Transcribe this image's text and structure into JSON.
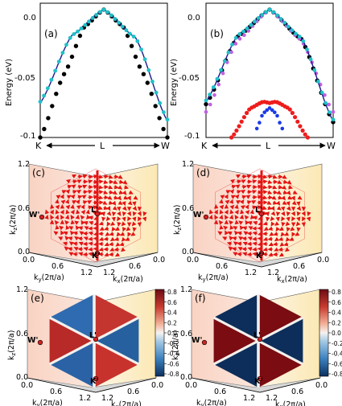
{
  "panels": {
    "a": {
      "label": "(a)",
      "ylabel": "Energy (eV)",
      "yticks": [
        "0.0",
        "-0.05",
        "-0.1"
      ],
      "xticks": [
        "K",
        "L",
        "W"
      ]
    },
    "b": {
      "label": "(b)",
      "ylabel": "Energy (eV)",
      "yticks": [
        "0.0",
        "-0.05",
        "-0.1"
      ],
      "xticks": [
        "K",
        "L",
        "W"
      ]
    },
    "c": {
      "label": "(c)"
    },
    "d": {
      "label": "(d)"
    },
    "e": {
      "label": "(e)"
    },
    "f": {
      "label": "(f)"
    }
  },
  "bz3d": {
    "zlabel": "k₂(2π/a)",
    "zlabel_main": "k",
    "zlabel_sub": "z",
    "zlabel_tail": "(2π/a)",
    "ylabel_main": "k",
    "ylabel_sub": "y",
    "ylabel_tail": "(2π/a)",
    "xlabel_main": "k",
    "xlabel_sub": "x",
    "xlabel_tail": "(2π/a)",
    "zticks": [
      "1.2",
      "0.6",
      "0.0"
    ],
    "yticks": [
      "0.0",
      "0.6",
      "1.2"
    ],
    "xticks": [
      "1.2",
      "0.6",
      "0.0"
    ],
    "points": [
      "W'",
      "L'",
      "K'"
    ]
  },
  "colorbar": {
    "ticks": [
      "0.8",
      "0.6",
      "0.4",
      "0.2",
      "0.0",
      "-0.2",
      "-0.4",
      "-0.6",
      "-0.8"
    ]
  },
  "colors": {
    "cyan": "#20c0c8",
    "black": "#000000",
    "navy": "#1a1a8c",
    "red": "#ee1c1c",
    "blue": "#1a3ae6",
    "violet": "#c060e0",
    "dark_red": "#7a0c12",
    "dark_blue": "#0d2e5a"
  },
  "chart_data": [
    {
      "type": "line",
      "panel": "a",
      "x_labels": [
        "K",
        "L",
        "W"
      ],
      "ylim": [
        -0.1,
        0.005
      ],
      "series": [
        {
          "style": "navy line",
          "x": [
            -1,
            -0.5,
            0,
            0.5,
            1
          ],
          "y": [
            -0.073,
            -0.02,
            0.0,
            -0.022,
            -0.087
          ]
        },
        {
          "style": "cyan markers",
          "x": [
            -1,
            -0.5,
            0,
            0.5,
            1
          ],
          "y": [
            -0.072,
            -0.02,
            0.0,
            -0.022,
            -0.086
          ]
        },
        {
          "style": "black markers",
          "x": [
            -1,
            -0.62,
            -0.3,
            0,
            0.3,
            0.62,
            1
          ],
          "y": [
            -0.1,
            -0.05,
            -0.013,
            0.0,
            -0.013,
            -0.05,
            -0.1
          ]
        }
      ]
    },
    {
      "type": "line",
      "panel": "b",
      "x_labels": [
        "K",
        "L",
        "W"
      ],
      "ylim": [
        -0.1,
        0.005
      ],
      "series": [
        {
          "style": "navy line",
          "x": [
            -1,
            -0.5,
            0,
            0.5,
            1
          ],
          "y": [
            -0.072,
            -0.02,
            0.0,
            -0.022,
            -0.087
          ]
        },
        {
          "style": "cyan markers",
          "x": [
            -1,
            -0.5,
            0,
            0.5,
            1
          ],
          "y": [
            -0.071,
            -0.02,
            0.0,
            -0.022,
            -0.086
          ]
        },
        {
          "style": "black markers",
          "x": [
            -1,
            -0.5,
            0,
            0.5,
            1
          ],
          "y": [
            -0.074,
            -0.021,
            0.0,
            -0.023,
            -0.088
          ]
        },
        {
          "style": "violet markers",
          "x": [
            -1,
            -0.5,
            0,
            0.5,
            1
          ],
          "y": [
            -0.08,
            -0.024,
            0.0,
            -0.024,
            -0.08
          ]
        },
        {
          "style": "red markers",
          "x": [
            -0.6,
            -0.3,
            -0.1,
            0,
            0.1,
            0.3,
            0.6
          ],
          "y": [
            -0.1,
            -0.077,
            -0.072,
            -0.073,
            -0.072,
            -0.077,
            -0.1
          ]
        },
        {
          "style": "blue markers",
          "x": [
            -0.2,
            -0.1,
            0,
            0.1,
            0.2
          ],
          "y": [
            -0.093,
            -0.081,
            -0.077,
            -0.081,
            -0.093
          ]
        }
      ]
    },
    {
      "type": "quiver",
      "panel": "c",
      "note": "red spin-texture arrows on Brillouin-zone surface"
    },
    {
      "type": "quiver",
      "panel": "d",
      "note": "red spin-texture arrows on Brillouin-zone surface"
    },
    {
      "type": "heatmap",
      "panel": "e",
      "zlim": [
        -0.8,
        0.8
      ]
    },
    {
      "type": "heatmap",
      "panel": "f",
      "zlim": [
        -0.8,
        0.8
      ]
    }
  ]
}
